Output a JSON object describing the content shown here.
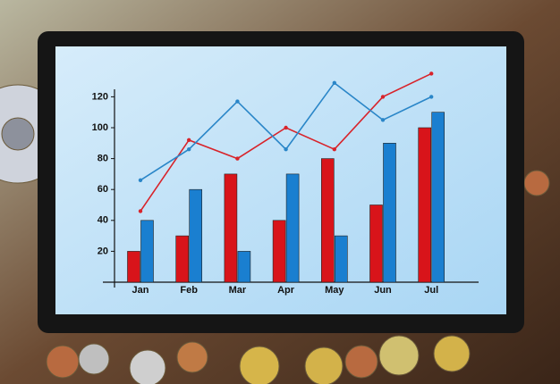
{
  "chart_data": {
    "type": "bar",
    "categories": [
      "Jan",
      "Feb",
      "Mar",
      "Apr",
      "May",
      "Jun",
      "Jul"
    ],
    "series": [
      {
        "type": "bar",
        "color": "#d8141a",
        "values": [
          20,
          30,
          70,
          40,
          80,
          50,
          100
        ]
      },
      {
        "type": "bar",
        "color": "#1a7fd0",
        "values": [
          40,
          60,
          20,
          70,
          30,
          90,
          110
        ]
      },
      {
        "type": "line",
        "color": "#d8232a",
        "values": [
          46,
          92,
          80,
          100,
          86,
          120,
          135
        ]
      },
      {
        "type": "line",
        "color": "#2a86c8",
        "values": [
          66,
          86,
          117,
          86,
          129,
          105,
          120
        ]
      }
    ],
    "ylim": [
      0,
      125
    ],
    "yticks": [
      20,
      40,
      60,
      80,
      100,
      120
    ]
  }
}
